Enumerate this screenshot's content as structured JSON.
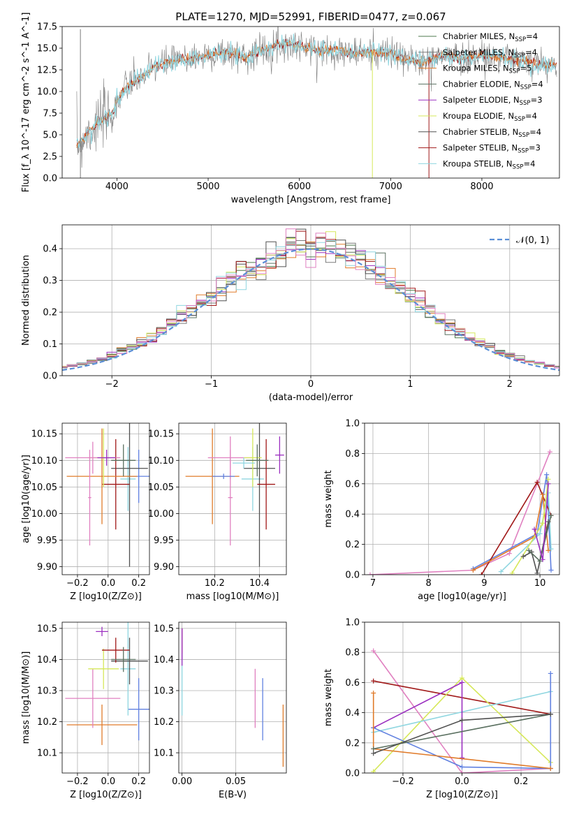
{
  "figure_title": "PLATE=1270, MJD=52991, FIBERID=0477, z=0.067",
  "colors": {
    "Chabrier MILES": "#4c7a4c",
    "Salpeter MILES": "#7a7a7a",
    "Kroupa MILES": "#e07b2a",
    "Chabrier ELODIE": "#5a7060",
    "Salpeter ELODIE": "#9b2fc0",
    "Kroupa ELODIE": "#d6e85a",
    "Chabrier STELIB": "#505050",
    "Salpeter STELIB": "#a01818",
    "Kroupa STELIB": "#8fd6e0",
    "pink": "#e080c0",
    "blue": "#6080e0",
    "normal": "#5b8fd6"
  },
  "chart_data": [
    {
      "id": "spectrum",
      "type": "line",
      "title": "PLATE=1270, MJD=52991, FIBERID=0477, z=0.067",
      "xlabel": "wavelength [Angstrom, rest frame]",
      "ylabel": "Flux [f_λ 10^-17 erg cm^-2 s^-1 A^-1]",
      "xlim": [
        3400,
        8850
      ],
      "ylim": [
        0,
        17.5
      ],
      "xticks": [
        4000,
        5000,
        6000,
        7000,
        8000
      ],
      "yticks": [
        0.0,
        2.5,
        5.0,
        7.5,
        10.0,
        12.5,
        15.0,
        17.5
      ],
      "legend_loc": "upper right",
      "legend": [
        {
          "label": "Chabrier MILES, N_SSP=4",
          "color_key": "Chabrier MILES"
        },
        {
          "label": "Salpeter MILES, N_SSP=4",
          "color_key": "Salpeter MILES"
        },
        {
          "label": "Kroupa MILES, N_SSP=5",
          "color_key": "Kroupa MILES"
        },
        {
          "label": "Chabrier ELODIE, N_SSP=4",
          "color_key": "Chabrier ELODIE"
        },
        {
          "label": "Salpeter ELODIE, N_SSP=3",
          "color_key": "Salpeter ELODIE"
        },
        {
          "label": "Kroupa ELODIE, N_SSP=4",
          "color_key": "Kroupa ELODIE"
        },
        {
          "label": "Chabrier STELIB, N_SSP=4",
          "color_key": "Chabrier STELIB"
        },
        {
          "label": "Salpeter STELIB, N_SSP=3",
          "color_key": "Salpeter STELIB"
        },
        {
          "label": "Kroupa STELIB, N_SSP=4",
          "color_key": "Kroupa STELIB"
        }
      ],
      "data_trend": {
        "x": [
          3560,
          3700,
          3850,
          3950,
          4000,
          4100,
          4200,
          4300,
          4400,
          4600,
          4800,
          5000,
          5200,
          5400,
          5600,
          5800,
          6000,
          6200,
          6400,
          6600,
          6800,
          7000,
          7200,
          7400,
          7600,
          7800,
          8000,
          8200,
          8400,
          8600,
          8850
        ],
        "y": [
          3.8,
          5.5,
          6.8,
          7.5,
          8.8,
          10.5,
          11.2,
          11.8,
          12.8,
          13.5,
          13.8,
          14.2,
          14.5,
          14.0,
          14.8,
          15.5,
          15.3,
          14.8,
          14.8,
          14.4,
          14.5,
          14.4,
          13.6,
          13.5,
          14.2,
          13.8,
          14.2,
          14.0,
          13.6,
          13.2,
          13.0
        ]
      },
      "spikes": [
        {
          "x": 3600,
          "ymin": 0,
          "ymax": 17.2,
          "color_key": "Salpeter MILES"
        },
        {
          "x": 6800,
          "ymin": 0,
          "ymax": 14.8,
          "color_key": "Kroupa ELODIE"
        },
        {
          "x": 7420,
          "ymin": 0,
          "ymax": 14.0,
          "color_key": "Salpeter STELIB"
        }
      ]
    },
    {
      "id": "residuals",
      "type": "histogram",
      "xlabel": "(data-model)/error",
      "ylabel": "Normed distribution",
      "xlim": [
        -2.5,
        2.5
      ],
      "ylim": [
        0,
        0.475
      ],
      "xticks": [
        -2,
        -1,
        0,
        1,
        2
      ],
      "yticks": [
        0.0,
        0.1,
        0.2,
        0.3,
        0.4
      ],
      "grid": true,
      "legend_loc": "upper right",
      "legend": [
        {
          "label": "𝒩(0, 1)",
          "color_key": "normal"
        }
      ],
      "bin_width": 0.1,
      "series_color_keys": [
        "Chabrier MILES",
        "Salpeter MILES",
        "Kroupa MILES",
        "Chabrier ELODIE",
        "Salpeter ELODIE",
        "Kroupa ELODIE",
        "Chabrier STELIB",
        "Salpeter STELIB",
        "Kroupa STELIB",
        "pink"
      ]
    },
    {
      "id": "age_vs_Z",
      "type": "errorbar",
      "xlabel": "Z [log10(Z/Z⊙)]",
      "ylabel": "age  [log10(age/yr)]",
      "xlim": [
        -0.3,
        0.27
      ],
      "ylim": [
        9.885,
        10.17
      ],
      "xticks": [
        -0.2,
        0.0,
        0.2
      ],
      "yticks": [
        9.9,
        9.95,
        10.0,
        10.05,
        10.1,
        10.15
      ],
      "grid": true,
      "points": [
        {
          "x": 0.2,
          "y": 10.07,
          "xerr": 0.07,
          "yerr": 0.05,
          "color_key": "blue"
        },
        {
          "x": 0.13,
          "y": 10.065,
          "xerr": 0.05,
          "yerr": 0.06,
          "color_key": "Kroupa STELIB"
        },
        {
          "x": 0.14,
          "y": 10.085,
          "xerr": 0.12,
          "yerr": 0.185,
          "color_key": "Chabrier STELIB"
        },
        {
          "x": 0.05,
          "y": 10.055,
          "xerr": 0.09,
          "yerr": 0.085,
          "color_key": "Salpeter STELIB"
        },
        {
          "x": -0.04,
          "y": 10.07,
          "xerr": 0.23,
          "yerr": 0.09,
          "color_key": "Kroupa MILES"
        },
        {
          "x": -0.03,
          "y": 10.105,
          "xerr": 0.1,
          "yerr": 0.055,
          "color_key": "Kroupa ELODIE"
        },
        {
          "x": 0.1,
          "y": 10.1,
          "xerr": 0.08,
          "yerr": 0.03,
          "color_key": "Chabrier ELODIE"
        },
        {
          "x": -0.1,
          "y": 10.105,
          "xerr": 0.18,
          "yerr": 0.03,
          "color_key": "pink"
        },
        {
          "x": -0.01,
          "y": 10.105,
          "xerr": 0.06,
          "yerr": 0.015,
          "color_key": "Salpeter ELODIE"
        },
        {
          "x": -0.12,
          "y": 10.03,
          "xerr": 0.01,
          "yerr": 0.09,
          "color_key": "pink"
        }
      ]
    },
    {
      "id": "age_vs_mass",
      "type": "errorbar",
      "xlabel": "mass [log10(M/M⊙)]",
      "ylabel": "",
      "xlim": [
        10.04,
        10.52
      ],
      "ylim": [
        9.885,
        10.17
      ],
      "xticks": [
        10.2,
        10.4
      ],
      "yticks": [
        9.9,
        9.95,
        10.0,
        10.05,
        10.1,
        10.15
      ],
      "grid": true,
      "points": [
        {
          "x": 10.19,
          "y": 10.07,
          "xerr": 0.12,
          "yerr": 0.09,
          "color_key": "Kroupa MILES"
        },
        {
          "x": 10.27,
          "y": 10.105,
          "xerr": 0.1,
          "yerr": 0.04,
          "color_key": "pink"
        },
        {
          "x": 10.27,
          "y": 10.03,
          "xerr": 0.01,
          "yerr": 0.09,
          "color_key": "pink"
        },
        {
          "x": 10.24,
          "y": 10.07,
          "xerr": 0.05,
          "yerr": 0.005,
          "color_key": "blue"
        },
        {
          "x": 10.37,
          "y": 10.065,
          "xerr": 0.05,
          "yerr": 0.06,
          "color_key": "Kroupa STELIB"
        },
        {
          "x": 10.4,
          "y": 10.085,
          "xerr": 0.07,
          "yerr": 0.185,
          "color_key": "Chabrier STELIB"
        },
        {
          "x": 10.43,
          "y": 10.055,
          "xerr": 0.04,
          "yerr": 0.085,
          "color_key": "Salpeter STELIB"
        },
        {
          "x": 10.37,
          "y": 10.105,
          "xerr": 0.04,
          "yerr": 0.055,
          "color_key": "Kroupa ELODIE"
        },
        {
          "x": 10.39,
          "y": 10.1,
          "xerr": 0.05,
          "yerr": 0.03,
          "color_key": "Chabrier ELODIE"
        },
        {
          "x": 10.49,
          "y": 10.11,
          "xerr": 0.02,
          "yerr": 0.035,
          "color_key": "Salpeter ELODIE"
        },
        {
          "x": 10.33,
          "y": 10.095,
          "xerr": 0.05,
          "yerr": 0.01,
          "color_key": "Kroupa STELIB"
        }
      ]
    },
    {
      "id": "massweight_vs_age",
      "type": "line",
      "xlabel": "age  [log10(age/yr)]",
      "ylabel": "mass weight",
      "xlim": [
        6.85,
        10.35
      ],
      "ylim": [
        0,
        1
      ],
      "xticks": [
        7,
        8,
        9,
        10
      ],
      "yticks": [
        0.0,
        0.2,
        0.4,
        0.6,
        0.8,
        1.0
      ],
      "grid": true,
      "series": [
        {
          "color_key": "pink",
          "x": [
            6.95,
            8.8,
            9.45,
            10.18
          ],
          "y": [
            0.0,
            0.03,
            0.14,
            0.81
          ]
        },
        {
          "color_key": "blue",
          "x": [
            8.8,
            9.95,
            10.12,
            10.2
          ],
          "y": [
            0.04,
            0.27,
            0.66,
            0.03
          ]
        },
        {
          "color_key": "Salpeter STELIB",
          "x": [
            8.95,
            9.95,
            10.2
          ],
          "y": [
            0.0,
            0.61,
            0.39
          ]
        },
        {
          "color_key": "Kroupa MILES",
          "x": [
            8.8,
            9.9,
            10.05,
            10.15
          ],
          "y": [
            0.03,
            0.25,
            0.53,
            0.16
          ]
        },
        {
          "color_key": "Kroupa STELIB",
          "x": [
            9.3,
            10.0,
            10.15,
            10.2
          ],
          "y": [
            0.02,
            0.27,
            0.54,
            0.17
          ]
        },
        {
          "color_key": "Kroupa ELODIE",
          "x": [
            9.5,
            10.05,
            10.15
          ],
          "y": [
            0.01,
            0.34,
            0.63
          ]
        },
        {
          "color_key": "Chabrier STELIB",
          "x": [
            9.7,
            9.85,
            9.95,
            10.15
          ],
          "y": [
            0.12,
            0.15,
            0.01,
            0.35
          ]
        },
        {
          "color_key": "Chabrier ELODIE",
          "x": [
            9.8,
            10.0,
            10.2
          ],
          "y": [
            0.16,
            0.09,
            0.39
          ]
        },
        {
          "color_key": "Salpeter ELODIE",
          "x": [
            9.9,
            10.05,
            10.15
          ],
          "y": [
            0.3,
            0.1,
            0.6
          ]
        }
      ]
    },
    {
      "id": "mass_vs_Z",
      "type": "errorbar",
      "xlabel": "Z [log10(Z/Z⊙)]",
      "ylabel": "mass [log10(M/M⊙)]",
      "xlim": [
        -0.3,
        0.27
      ],
      "ylim": [
        10.035,
        10.52
      ],
      "xticks": [
        -0.2,
        0.0,
        0.2
      ],
      "yticks": [
        10.1,
        10.2,
        10.3,
        10.4,
        10.5
      ],
      "grid": true,
      "points": [
        {
          "x": -0.04,
          "y": 10.19,
          "xerr": 0.23,
          "yerr": 0.065,
          "color_key": "Kroupa MILES"
        },
        {
          "x": -0.1,
          "y": 10.275,
          "xerr": 0.18,
          "yerr": 0.095,
          "color_key": "pink"
        },
        {
          "x": 0.2,
          "y": 10.24,
          "xerr": 0.07,
          "yerr": 0.1,
          "color_key": "blue"
        },
        {
          "x": -0.03,
          "y": 10.37,
          "xerr": 0.1,
          "yerr": 0.065,
          "color_key": "Kroupa ELODIE"
        },
        {
          "x": 0.13,
          "y": 10.37,
          "xerr": 0.05,
          "yerr": 0.15,
          "color_key": "Kroupa STELIB"
        },
        {
          "x": 0.14,
          "y": 10.395,
          "xerr": 0.12,
          "yerr": 0.075,
          "color_key": "Chabrier STELIB"
        },
        {
          "x": 0.05,
          "y": 10.43,
          "xerr": 0.09,
          "yerr": 0.04,
          "color_key": "Salpeter STELIB"
        },
        {
          "x": 0.1,
          "y": 10.4,
          "xerr": 0.08,
          "yerr": 0.04,
          "color_key": "Chabrier ELODIE"
        },
        {
          "x": -0.04,
          "y": 10.49,
          "xerr": 0.04,
          "yerr": 0.015,
          "color_key": "Salpeter ELODIE"
        }
      ]
    },
    {
      "id": "mass_vs_ebv",
      "type": "errorbar",
      "xlabel": "E(B-V)",
      "ylabel": "",
      "xlim": [
        -0.003,
        0.097
      ],
      "ylim": [
        10.035,
        10.52
      ],
      "xticks": [
        0.0,
        0.05
      ],
      "yticks": [
        10.1,
        10.2,
        10.3,
        10.4,
        10.5
      ],
      "grid": true,
      "points": [
        {
          "x": 0.0,
          "y": 10.45,
          "xerr": 0,
          "yerr": 0.05,
          "color_key": "Salpeter STELIB"
        },
        {
          "x": 0.0,
          "y": 10.32,
          "xerr": 0,
          "yerr": 0.1,
          "color_key": "Kroupa STELIB"
        },
        {
          "x": 0.0,
          "y": 10.44,
          "xerr": 0,
          "yerr": 0.06,
          "color_key": "Salpeter ELODIE"
        },
        {
          "x": 0.068,
          "y": 10.275,
          "xerr": 0,
          "yerr": 0.095,
          "color_key": "pink"
        },
        {
          "x": 0.075,
          "y": 10.24,
          "xerr": 0,
          "yerr": 0.1,
          "color_key": "blue"
        },
        {
          "x": 0.094,
          "y": 10.155,
          "xerr": 0,
          "yerr": 0.1,
          "color_key": "Kroupa MILES"
        }
      ]
    },
    {
      "id": "massweight_vs_Z",
      "type": "line",
      "xlabel": "Z [log10(Z/Z⊙)]",
      "ylabel": "mass weight",
      "xlim": [
        -0.33,
        0.33
      ],
      "ylim": [
        0,
        1
      ],
      "xticks": [
        -0.2,
        0.0,
        0.2
      ],
      "yticks": [
        0.0,
        0.2,
        0.4,
        0.6,
        0.8,
        1.0
      ],
      "grid": true,
      "series": [
        {
          "color_key": "pink",
          "x": [
            -0.3,
            0.0,
            0.3
          ],
          "y": [
            0.81,
            0.0,
            0.03
          ]
        },
        {
          "color_key": "Salpeter STELIB",
          "x": [
            -0.3,
            0.3
          ],
          "y": [
            0.61,
            0.39
          ]
        },
        {
          "color_key": "Kroupa ELODIE",
          "x": [
            -0.3,
            0.0,
            0.3
          ],
          "y": [
            0.01,
            0.63,
            0.07
          ]
        },
        {
          "color_key": "Kroupa STELIB",
          "x": [
            -0.3,
            0.3
          ],
          "y": [
            0.27,
            0.54
          ]
        },
        {
          "color_key": "Salpeter ELODIE",
          "x": [
            -0.3,
            0.0,
            0.0
          ],
          "y": [
            0.3,
            0.6,
            0.1
          ]
        },
        {
          "color_key": "blue",
          "x": [
            -0.3,
            0.0,
            0.3,
            0.3
          ],
          "y": [
            0.3,
            0.04,
            0.03,
            0.66
          ]
        },
        {
          "color_key": "Kroupa MILES",
          "x": [
            -0.3,
            -0.3,
            0.3
          ],
          "y": [
            0.53,
            0.16,
            0.03
          ]
        },
        {
          "color_key": "Chabrier ELODIE",
          "x": [
            -0.3,
            0.3
          ],
          "y": [
            0.16,
            0.39
          ]
        },
        {
          "color_key": "Chabrier STELIB",
          "x": [
            -0.3,
            0.0,
            0.3
          ],
          "y": [
            0.13,
            0.35,
            0.39
          ]
        }
      ]
    }
  ]
}
